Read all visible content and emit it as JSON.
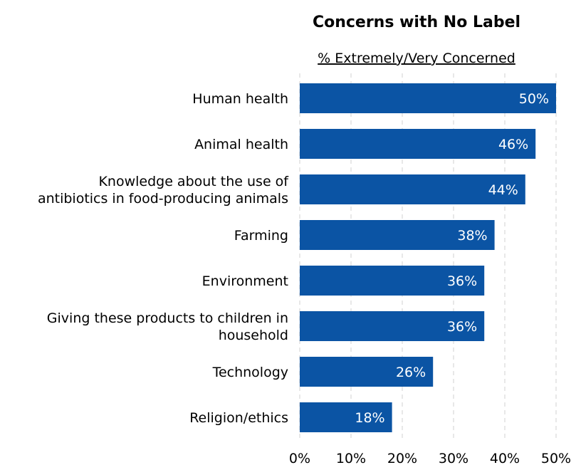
{
  "chart_data": {
    "type": "bar",
    "orientation": "horizontal",
    "title": "Concerns with No Label",
    "subtitle": "% Extremely/Very Concerned",
    "categories": [
      [
        "Human health"
      ],
      [
        "Animal health"
      ],
      [
        "Knowledge about the use of",
        "antibiotics in food-producing animals"
      ],
      [
        "Farming"
      ],
      [
        "Environment"
      ],
      [
        "Giving these products to children in",
        "household"
      ],
      [
        "Technology"
      ],
      [
        "Religion/ethics"
      ]
    ],
    "values": [
      50,
      46,
      44,
      38,
      36,
      36,
      26,
      18
    ],
    "value_labels": [
      "50%",
      "46%",
      "44%",
      "38%",
      "36%",
      "36%",
      "26%",
      "18%"
    ],
    "xlim": [
      0,
      50
    ],
    "xticks": [
      0,
      10,
      20,
      30,
      40,
      50
    ],
    "xtick_labels": [
      "0%",
      "10%",
      "20%",
      "30%",
      "40%",
      "50%"
    ],
    "grid": "vertical dashed",
    "legend": "none",
    "colors": {
      "bar": "#0B54A4",
      "grid": "#D9D9D9",
      "text": "#000000",
      "label": "#FFFFFF"
    }
  }
}
